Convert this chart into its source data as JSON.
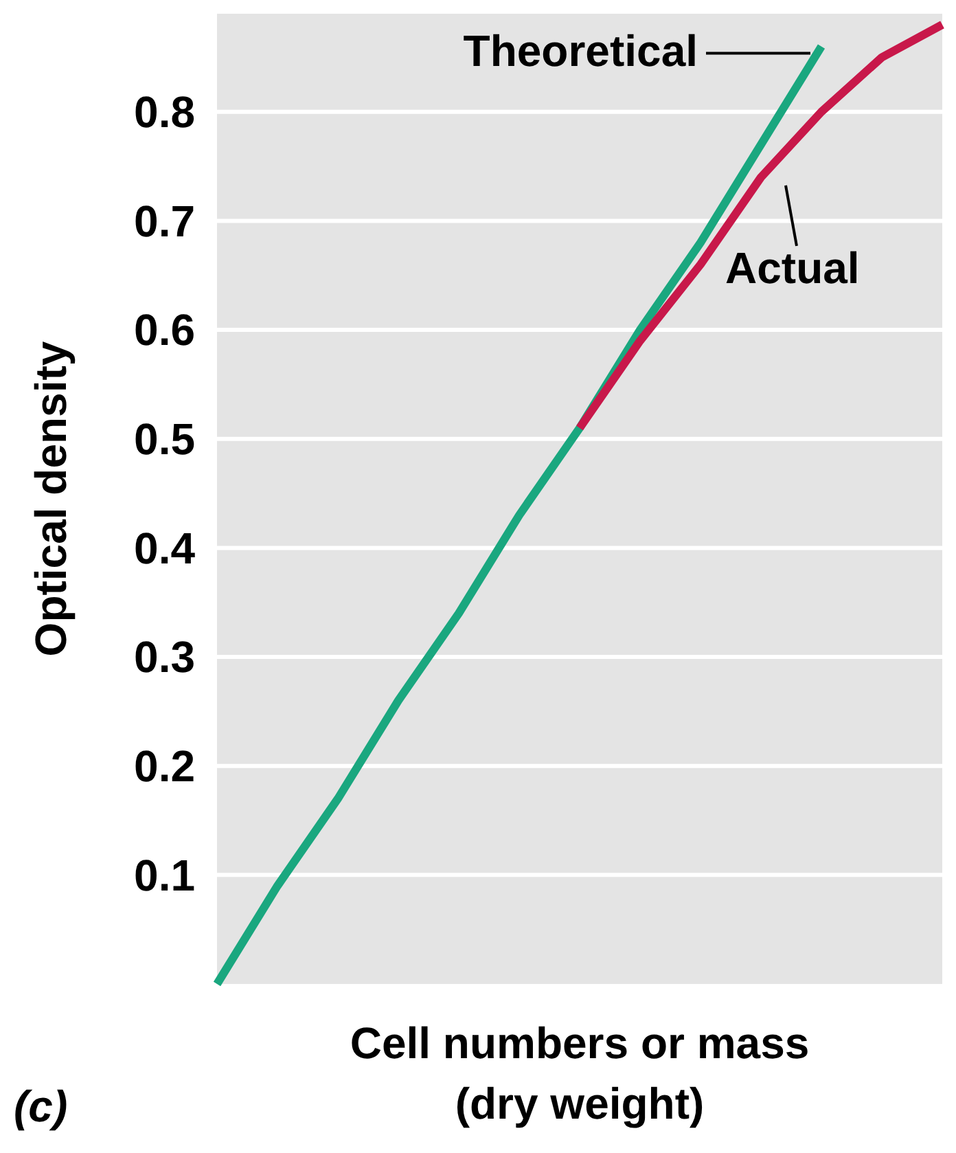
{
  "chart_data": {
    "type": "line",
    "xlabel": "Cell numbers or mass\n(dry weight)",
    "ylabel": "Optical density",
    "categories": [
      null,
      null,
      null,
      null,
      null,
      null,
      null,
      null,
      null,
      null,
      null,
      null,
      null
    ],
    "ylim": [
      0,
      0.89
    ],
    "yticks": [
      0.1,
      0.2,
      0.3,
      0.4,
      0.5,
      0.6,
      0.7,
      0.8
    ],
    "grid": "y",
    "marker": "none",
    "line_style": "solid",
    "annotations": [
      "(c)"
    ],
    "series": [
      {
        "name": "Theoretical",
        "color": "#1aa77f",
        "values": [
          0,
          0.09,
          0.17,
          0.26,
          0.34,
          0.43,
          0.51,
          0.6,
          0.68,
          0.77,
          0.86,
          null,
          null
        ]
      },
      {
        "name": "Actual",
        "color": "#c8184a",
        "values": [
          null,
          null,
          null,
          null,
          null,
          null,
          0.51,
          0.59,
          0.66,
          0.74,
          0.8,
          0.85,
          0.88
        ]
      }
    ]
  }
}
